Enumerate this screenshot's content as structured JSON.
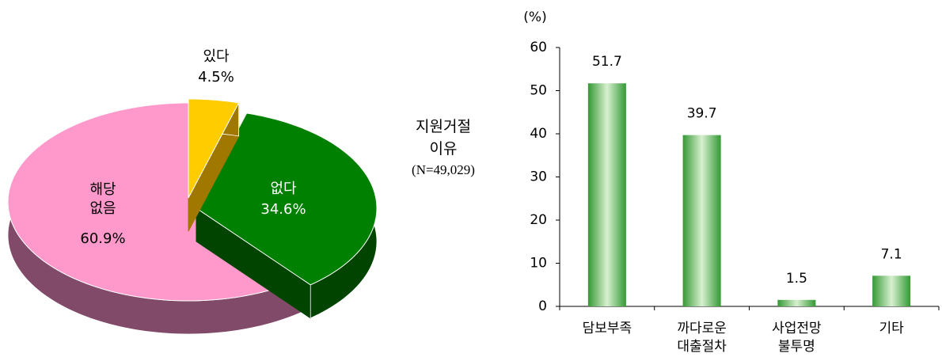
{
  "chart_data": [
    {
      "type": "pie3d",
      "categories": [
        "있다",
        "없다",
        "해당\n없음"
      ],
      "values": [
        4.5,
        34.6,
        60.9
      ],
      "value_labels": [
        "4.5%",
        "34.6%",
        "60.9%"
      ],
      "colors": [
        "#ffcc00",
        "#008000",
        "#ff99cc"
      ],
      "side_colors": [
        "#a07800",
        "#004400",
        "#804a68"
      ]
    },
    {
      "type": "bar",
      "title": "지원거절\n이유",
      "subtitle": "(N=49,029)",
      "y_label": "(%)",
      "categories": [
        "담보부족",
        "까다로운\n대출절차",
        "사업전망\n불투명",
        "기타"
      ],
      "values": [
        51.7,
        39.7,
        1.5,
        7.1
      ],
      "color": "#339933",
      "ylim": [
        0,
        60
      ],
      "yticks": [
        0,
        10,
        20,
        30,
        40,
        50,
        60
      ]
    }
  ]
}
